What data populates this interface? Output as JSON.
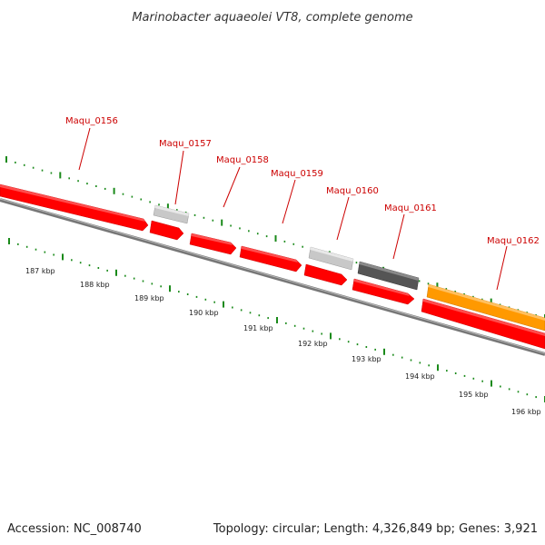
{
  "title": "Marinobacter aquaeolei VT8, complete genome",
  "footer": {
    "accession": "Accession: NC_008740",
    "summary": "Topology: circular; Length: 4,326,849 bp; Genes: 3,921"
  },
  "colors": {
    "forward_gene": "#ff0000",
    "reverse_gene": "#ff0000",
    "pseudo_gene": "#c0c0c0",
    "rna_gene": "#666666",
    "highlight_gene": "#ff9900",
    "label": "#cc0000",
    "tick": "#1a8a1a",
    "backbone": "#777777"
  },
  "genes": [
    {
      "id": "Maqu_0156",
      "label": "Maqu_0156",
      "strand": "reverse",
      "kind": "cds"
    },
    {
      "id": "Maqu_0157",
      "label": "Maqu_0157",
      "strand": "forward",
      "kind": "pseudo"
    },
    {
      "id": "Maqu_0158",
      "label": "Maqu_0158",
      "strand": "reverse",
      "kind": "cds"
    },
    {
      "id": "Maqu_0159",
      "label": "Maqu_0159",
      "strand": "reverse",
      "kind": "cds"
    },
    {
      "id": "Maqu_0160",
      "label": "Maqu_0160",
      "strand": "forward",
      "kind": "pseudo"
    },
    {
      "id": "Maqu_0161",
      "label": "Maqu_0161",
      "strand": "forward",
      "kind": "rna"
    },
    {
      "id": "Maqu_0162",
      "label": "Maqu_0162",
      "strand": "forward",
      "kind": "highlight"
    }
  ],
  "scale_labels": [
    "187 kbp",
    "188 kbp",
    "189 kbp",
    "190 kbp",
    "191 kbp",
    "192 kbp",
    "193 kbp",
    "194 kbp",
    "195 kbp",
    "196 kbp"
  ]
}
